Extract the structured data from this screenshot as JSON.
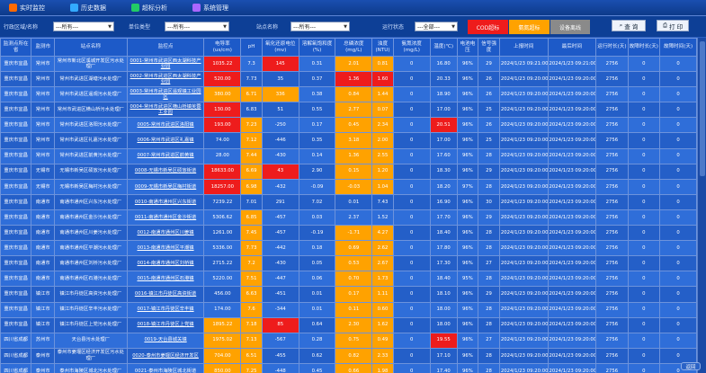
{
  "nav": {
    "items": [
      {
        "label": "实时监控",
        "color": "#ff6a00"
      },
      {
        "label": "历史数据",
        "color": "#33aaff"
      },
      {
        "label": "超标分析",
        "color": "#22cc66"
      },
      {
        "label": "系统管理",
        "color": "#aa66ff"
      }
    ]
  },
  "filters": {
    "region_label": "行政区域/名称",
    "region_value": "---所有---",
    "type_label": "单位类型",
    "type_value": "---所有---",
    "name_label": "站点名称",
    "name_value": "---所有---",
    "state_label": "运行状态",
    "state_value": "---全部---"
  },
  "legend": {
    "exceed": "COD超标",
    "warning": "氨氮超标",
    "offline": "设备离线"
  },
  "buttons": {
    "search": "查 询",
    "print": "打 印"
  },
  "colors": {
    "exceed": "#ee1c1c",
    "warning": "#ffa200",
    "offline": "#8a8a8a"
  },
  "table": {
    "headers": [
      "监测点所在省",
      "监测市",
      "站点名称",
      "监控点",
      "电导率(us/cm)",
      "pH",
      "氧化还原电位(mv)",
      "溶解氧饱和度(%)",
      "总磷浓度(mg/L)",
      "浊度(NTU)",
      "氨氮浓度(mg/L)",
      "温度(℃)",
      "电池电压",
      "信号强度",
      "上报时间",
      "最后时间",
      "运行时长(天)",
      "故障时长(天)",
      "故障时间(天)"
    ],
    "rows": [
      [
        "重庆市宜昌",
        "常州市",
        "常州市新北区溪城开发区污水处理厂",
        "0001-常州市武进区西太湖科技产业园",
        "1035.22",
        "7.3",
        "145",
        "0.31",
        "2.01",
        "0.81",
        "0",
        "16.80",
        "96%",
        "29",
        "2024/1/23 09:21:00",
        "2024/1/23 09:21:00",
        "2756",
        "0",
        "0"
      ],
      [
        "重庆市宜昌",
        "常州市",
        "常州市武进区湖塘污水处理厂",
        "0002-常州市武进区西太湖科技产业园",
        "520.00",
        "7.73",
        "35",
        "0.37",
        "1.36",
        "1.60",
        "0",
        "20.33",
        "96%",
        "26",
        "2024/1/23 09:20:00",
        "2024/1/23 09:20:00",
        "2756",
        "0",
        "0"
      ],
      [
        "重庆市宜昌",
        "常州市",
        "常州市武进区遥观污水处理厂",
        "0003-常州市武进区遥观镇工业园区",
        "380.00",
        "6.71",
        "336",
        "0.38",
        "0.84",
        "1.44",
        "0",
        "18.90",
        "96%",
        "26",
        "2024/1/23 09:20:00",
        "2024/1/23 09:20:00",
        "2756",
        "0",
        "0"
      ],
      [
        "重庆市宜昌",
        "常州市",
        "常州市武进区横山桥污水处理厂",
        "0004-常州市武进区横山桥镇芙蓉工业园",
        "130.00",
        "6.83",
        "51",
        "0.55",
        "2.77",
        "0.07",
        "0",
        "17.00",
        "96%",
        "25",
        "2024/1/23 09:20:00",
        "2024/1/23 09:20:00",
        "2756",
        "0",
        "0"
      ],
      [
        "重庆市宜昌",
        "常州市",
        "常州市武进区洛阳污水处理厂",
        "0005-常州市武进区洛阳镇",
        "193.00",
        "7.23",
        "-250",
        "0.17",
        "0.45",
        "2.34",
        "0",
        "20.51",
        "96%",
        "26",
        "2024/1/23 09:20:00",
        "2024/1/23 09:20:00",
        "2756",
        "0",
        "0"
      ],
      [
        "重庆市宜昌",
        "常州市",
        "常州市武进区礼嘉污水处理厂",
        "0006-常州市武进区礼嘉镇",
        "74.00",
        "7.12",
        "-446",
        "0.35",
        "3.18",
        "2.00",
        "0",
        "17.00",
        "96%",
        "25",
        "2024/1/23 09:20:00",
        "2024/1/23 09:20:00",
        "2756",
        "0",
        "0"
      ],
      [
        "重庆市宜昌",
        "常州市",
        "常州市武进区前黄污水处理厂",
        "0007-常州市武进区前黄镇",
        "28.00",
        "7.44",
        "-430",
        "0.14",
        "1.36",
        "2.55",
        "0",
        "17.60",
        "96%",
        "28",
        "2024/1/23 09:20:00",
        "2024/1/23 09:20:00",
        "2756",
        "0",
        "0"
      ],
      [
        "重庆市宜昌",
        "无锡市",
        "无锡市新吴区硕放污水处理厂",
        "0008-无锡市新吴区硕放街道",
        "18633.00",
        "6.69",
        "43",
        "2.90",
        "0.15",
        "1.20",
        "0",
        "18.30",
        "96%",
        "29",
        "2024/1/23 09:20:00",
        "2024/1/23 09:20:00",
        "2756",
        "0",
        "0"
      ],
      [
        "重庆市宜昌",
        "无锡市",
        "无锡市新吴区梅村污水处理厂",
        "0009-无锡市新吴区梅村街道",
        "18257.00",
        "6.98",
        "-432",
        "-0.09",
        "-0.03",
        "1.04",
        "0",
        "18.20",
        "97%",
        "28",
        "2024/1/23 09:20:00",
        "2024/1/23 09:20:00",
        "2756",
        "0",
        "0"
      ],
      [
        "重庆市宜昌",
        "南通市",
        "南通市通州区兴东污水处理厂",
        "0010-南通市通州区兴东街道",
        "7239.22",
        "7.01",
        "291",
        "7.02",
        "0.01",
        "7.43",
        "0",
        "16.90",
        "96%",
        "30",
        "2024/1/23 09:20:00",
        "2024/1/23 09:20:00",
        "2756",
        "0",
        "0"
      ],
      [
        "重庆市宜昌",
        "南通市",
        "南通市通州区金沙污水处理厂",
        "0011-南通市通州区金沙街道",
        "5306.62",
        "6.85",
        "-457",
        "0.03",
        "2.37",
        "1.52",
        "0",
        "17.70",
        "96%",
        "29",
        "2024/1/23 09:20:00",
        "2024/1/23 09:20:00",
        "2756",
        "0",
        "0"
      ],
      [
        "重庆市宜昌",
        "南通市",
        "南通市通州区川姜污水处理厂",
        "0012-南通市通州区川姜镇",
        "1261.00",
        "7.45",
        "-457",
        "-0.19",
        "-1.71",
        "4.27",
        "0",
        "18.40",
        "96%",
        "28",
        "2024/1/23 09:20:00",
        "2024/1/23 09:20:00",
        "2756",
        "0",
        "0"
      ],
      [
        "重庆市宜昌",
        "南通市",
        "南通市通州区平潮污水处理厂",
        "0013-南通市通州区平潮镇",
        "5336.00",
        "7.73",
        "-442",
        "0.18",
        "0.69",
        "2.62",
        "0",
        "17.80",
        "96%",
        "28",
        "2024/1/23 09:20:00",
        "2024/1/23 09:20:00",
        "2756",
        "0",
        "0"
      ],
      [
        "重庆市宜昌",
        "南通市",
        "南通市通州区刘桥污水处理厂",
        "0014-南通市通州区刘桥镇",
        "2715.22",
        "7.2",
        "-430",
        "0.05",
        "0.53",
        "2.67",
        "0",
        "17.30",
        "96%",
        "27",
        "2024/1/23 09:20:00",
        "2024/1/23 09:20:00",
        "2756",
        "0",
        "0"
      ],
      [
        "重庆市宜昌",
        "南通市",
        "南通市通州区石港污水处理厂",
        "0015-南通市通州区石港镇",
        "5220.00",
        "7.51",
        "-447",
        "0.06",
        "0.70",
        "1.73",
        "0",
        "18.40",
        "95%",
        "28",
        "2024/1/23 09:20:00",
        "2024/1/23 09:20:00",
        "2756",
        "0",
        "0"
      ],
      [
        "重庆市宜昌",
        "镇江市",
        "镇江市丹徒区高资污水处理厂",
        "0016-镇江市丹徒区高资街道",
        "456.00",
        "6.63",
        "-451",
        "0.01",
        "0.17",
        "1.11",
        "0",
        "18.10",
        "96%",
        "29",
        "2024/1/23 09:20:00",
        "2024/1/23 09:20:00",
        "2756",
        "0",
        "0"
      ],
      [
        "重庆市宜昌",
        "镇江市",
        "镇江市丹徒区辛丰污水处理厂",
        "0017-镇江市丹徒区辛丰镇",
        "174.00",
        "7.6",
        "-344",
        "0.01",
        "0.11",
        "0.60",
        "0",
        "18.00",
        "96%",
        "28",
        "2024/1/23 09:20:00",
        "2024/1/23 09:20:00",
        "2756",
        "0",
        "0"
      ],
      [
        "重庆市宜昌",
        "镇江市",
        "镇江市丹徒区上党污水处理厂",
        "0018-镇江市丹徒区上党镇",
        "1895.22",
        "7.18",
        "85",
        "0.64",
        "2.30",
        "1.62",
        "0",
        "18.00",
        "96%",
        "28",
        "2024/1/23 09:20:00",
        "2024/1/23 09:20:00",
        "2756",
        "0",
        "0"
      ],
      [
        "四川省成都",
        "苏州市",
        "天台县污水处理厂",
        "0019-天台县城关镇",
        "1975.02",
        "7.13",
        "-567",
        "0.28",
        "0.75",
        "0.49",
        "0",
        "19.55",
        "96%",
        "27",
        "2024/1/23 09:20:00",
        "2024/1/23 09:20:00",
        "2756",
        "0",
        "0"
      ],
      [
        "四川省成都",
        "泰州市",
        "泰州市姜堰区经济开发区污水处理厂",
        "0020-泰州市姜堰区经济开发区",
        "704.00",
        "6.51",
        "-455",
        "0.62",
        "0.82",
        "2.33",
        "0",
        "17.10",
        "96%",
        "28",
        "2024/1/23 09:20:00",
        "2024/1/23 09:20:00",
        "2756",
        "0",
        "0"
      ],
      [
        "四川省成都",
        "泰州市",
        "泰州市海陵区城北污水处理厂",
        "0021-泰州市海陵区城北街道",
        "850.00",
        "7.25",
        "-448",
        "0.45",
        "0.66",
        "1.98",
        "0",
        "17.40",
        "96%",
        "28",
        "2024/1/23 09:20:00",
        "2024/1/23 09:20:00",
        "2756",
        "0",
        "0"
      ]
    ],
    "highlights": [
      {
        "c4": "red",
        "c5": "",
        "c6": "red",
        "c8": "orange",
        "c9": "orange"
      },
      {
        "c4": "red",
        "c5": "",
        "c6": "",
        "c8": "red",
        "c9": "red"
      },
      {
        "c4": "orange",
        "c5": "orange",
        "c6": "orange",
        "c8": "orange",
        "c9": "orange"
      },
      {
        "c4": "red",
        "c5": "",
        "c6": "",
        "c8": "orange",
        "c9": "orange"
      },
      {
        "c4": "red",
        "c5": "orange",
        "c6": "",
        "c8": "orange",
        "c9": "orange",
        "c11": "red"
      },
      {
        "c4": "",
        "c5": "orange",
        "c6": "",
        "c8": "orange",
        "c9": "orange"
      },
      {
        "c4": "",
        "c5": "orange",
        "c6": "",
        "c8": "orange",
        "c9": "orange"
      },
      {
        "c4": "red",
        "c5": "orange",
        "c6": "red",
        "c8": "orange",
        "c9": "orange"
      },
      {
        "c4": "red",
        "c5": "orange",
        "c6": "",
        "c8": "orange",
        "c9": "orange"
      },
      {
        "c4": "",
        "c5": "",
        "c6": "",
        "c8": "",
        "c9": ""
      },
      {
        "c4": "",
        "c5": "orange",
        "c6": "",
        "c8": "",
        "c9": ""
      },
      {
        "c4": "",
        "c5": "orange",
        "c6": "",
        "c8": "orange",
        "c9": "orange"
      },
      {
        "c4": "",
        "c5": "orange",
        "c6": "",
        "c8": "orange",
        "c9": "orange"
      },
      {
        "c4": "",
        "c5": "orange",
        "c6": "",
        "c8": "orange",
        "c9": "orange"
      },
      {
        "c4": "",
        "c5": "orange",
        "c6": "",
        "c8": "orange",
        "c9": "orange"
      },
      {
        "c4": "",
        "c5": "orange",
        "c6": "",
        "c8": "orange",
        "c9": "orange"
      },
      {
        "c4": "",
        "c5": "orange",
        "c6": "",
        "c8": "orange",
        "c9": "orange"
      },
      {
        "c4": "orange",
        "c5": "orange",
        "c6": "red",
        "c8": "orange",
        "c9": "orange"
      },
      {
        "c4": "orange",
        "c5": "orange",
        "c6": "",
        "c8": "orange",
        "c9": "orange",
        "c11": "red"
      },
      {
        "c4": "orange",
        "c5": "orange",
        "c6": "",
        "c8": "orange",
        "c9": "orange"
      },
      {
        "c4": "orange",
        "c5": "orange",
        "c6": "",
        "c8": "orange",
        "c9": "orange"
      }
    ]
  },
  "corner_button": "返回"
}
